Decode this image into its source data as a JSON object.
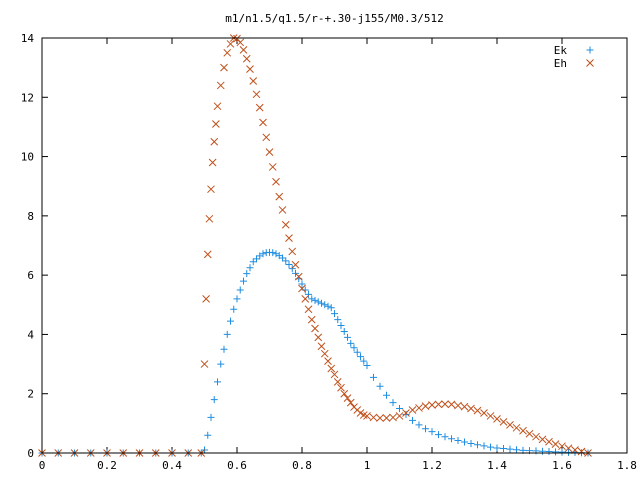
{
  "chart_data": {
    "type": "scatter",
    "title": "m1/n1.5/q1.5/r-+.30-j155/M0.3/512",
    "xlabel": "",
    "ylabel": "",
    "xlim": [
      0,
      1.8
    ],
    "ylim": [
      0,
      14
    ],
    "grid": false,
    "legend_position": "top-right",
    "x_ticks": [
      "0",
      "0.2",
      "0.4",
      "0.6",
      "0.8",
      "1",
      "1.2",
      "1.4",
      "1.6",
      "1.8"
    ],
    "y_ticks": [
      "0",
      "2",
      "4",
      "6",
      "8",
      "10",
      "12",
      "14"
    ],
    "series": [
      {
        "name": "Ek",
        "marker": "plus",
        "color": "#1f8ee0",
        "x": [
          0.0,
          0.05,
          0.1,
          0.15,
          0.2,
          0.25,
          0.3,
          0.35,
          0.4,
          0.45,
          0.49,
          0.5,
          0.51,
          0.52,
          0.53,
          0.54,
          0.55,
          0.56,
          0.57,
          0.58,
          0.59,
          0.6,
          0.61,
          0.62,
          0.63,
          0.64,
          0.65,
          0.66,
          0.67,
          0.68,
          0.69,
          0.7,
          0.71,
          0.72,
          0.73,
          0.74,
          0.75,
          0.76,
          0.77,
          0.78,
          0.79,
          0.8,
          0.81,
          0.82,
          0.83,
          0.84,
          0.85,
          0.86,
          0.87,
          0.88,
          0.89,
          0.9,
          0.91,
          0.92,
          0.93,
          0.94,
          0.95,
          0.96,
          0.97,
          0.98,
          0.99,
          1.0,
          1.02,
          1.04,
          1.06,
          1.08,
          1.1,
          1.12,
          1.14,
          1.16,
          1.18,
          1.2,
          1.22,
          1.24,
          1.26,
          1.28,
          1.3,
          1.32,
          1.34,
          1.36,
          1.38,
          1.4,
          1.42,
          1.44,
          1.46,
          1.48,
          1.5,
          1.52,
          1.54,
          1.56,
          1.58,
          1.6,
          1.62,
          1.64,
          1.66,
          1.68
        ],
        "y": [
          0,
          0,
          0,
          0,
          0,
          0,
          0,
          0,
          0,
          0,
          0,
          0.1,
          0.6,
          1.2,
          1.8,
          2.4,
          3.0,
          3.5,
          4.0,
          4.45,
          4.85,
          5.2,
          5.5,
          5.8,
          6.05,
          6.25,
          6.45,
          6.55,
          6.65,
          6.72,
          6.76,
          6.77,
          6.76,
          6.72,
          6.66,
          6.58,
          6.48,
          6.36,
          6.22,
          6.06,
          5.88,
          5.7,
          5.5,
          5.35,
          5.2,
          5.15,
          5.1,
          5.05,
          5.0,
          4.95,
          4.9,
          4.7,
          4.5,
          4.3,
          4.1,
          3.9,
          3.7,
          3.55,
          3.4,
          3.25,
          3.1,
          2.95,
          2.55,
          2.25,
          1.95,
          1.7,
          1.5,
          1.3,
          1.1,
          0.95,
          0.82,
          0.72,
          0.62,
          0.55,
          0.48,
          0.42,
          0.37,
          0.32,
          0.28,
          0.24,
          0.2,
          0.17,
          0.15,
          0.13,
          0.11,
          0.09,
          0.08,
          0.07,
          0.06,
          0.05,
          0.04,
          0.03,
          0.02,
          0.02,
          0.01,
          0.0
        ]
      },
      {
        "name": "Eh",
        "marker": "cross",
        "color": "#c0501a",
        "x": [
          0.0,
          0.05,
          0.1,
          0.15,
          0.2,
          0.25,
          0.3,
          0.35,
          0.4,
          0.45,
          0.49,
          0.5,
          0.505,
          0.51,
          0.515,
          0.52,
          0.525,
          0.53,
          0.535,
          0.54,
          0.55,
          0.56,
          0.57,
          0.58,
          0.59,
          0.6,
          0.61,
          0.62,
          0.63,
          0.64,
          0.65,
          0.66,
          0.67,
          0.68,
          0.69,
          0.7,
          0.71,
          0.72,
          0.73,
          0.74,
          0.75,
          0.76,
          0.77,
          0.78,
          0.79,
          0.8,
          0.81,
          0.82,
          0.83,
          0.84,
          0.85,
          0.86,
          0.87,
          0.88,
          0.89,
          0.9,
          0.91,
          0.92,
          0.93,
          0.94,
          0.95,
          0.96,
          0.97,
          0.98,
          0.99,
          1.0,
          1.02,
          1.04,
          1.06,
          1.08,
          1.1,
          1.12,
          1.14,
          1.16,
          1.18,
          1.2,
          1.22,
          1.24,
          1.26,
          1.28,
          1.3,
          1.32,
          1.34,
          1.36,
          1.38,
          1.4,
          1.42,
          1.44,
          1.46,
          1.48,
          1.5,
          1.52,
          1.54,
          1.56,
          1.58,
          1.6,
          1.62,
          1.64,
          1.66,
          1.68
        ],
        "y": [
          0,
          0,
          0,
          0,
          0,
          0,
          0,
          0,
          0,
          0,
          0,
          3.0,
          5.2,
          6.7,
          7.9,
          8.9,
          9.8,
          10.5,
          11.1,
          11.7,
          12.4,
          13.0,
          13.5,
          13.8,
          14.0,
          13.98,
          13.85,
          13.6,
          13.3,
          12.95,
          12.55,
          12.1,
          11.65,
          11.15,
          10.65,
          10.15,
          9.65,
          9.15,
          8.65,
          8.2,
          7.7,
          7.25,
          6.8,
          6.35,
          5.95,
          5.55,
          5.2,
          4.85,
          4.5,
          4.2,
          3.9,
          3.6,
          3.35,
          3.1,
          2.85,
          2.65,
          2.4,
          2.2,
          2.0,
          1.85,
          1.7,
          1.55,
          1.45,
          1.35,
          1.28,
          1.25,
          1.2,
          1.18,
          1.18,
          1.2,
          1.25,
          1.35,
          1.45,
          1.52,
          1.58,
          1.62,
          1.64,
          1.65,
          1.64,
          1.6,
          1.56,
          1.5,
          1.43,
          1.35,
          1.25,
          1.15,
          1.05,
          0.95,
          0.85,
          0.75,
          0.65,
          0.55,
          0.46,
          0.38,
          0.3,
          0.23,
          0.16,
          0.1,
          0.05,
          0.0
        ]
      }
    ]
  }
}
